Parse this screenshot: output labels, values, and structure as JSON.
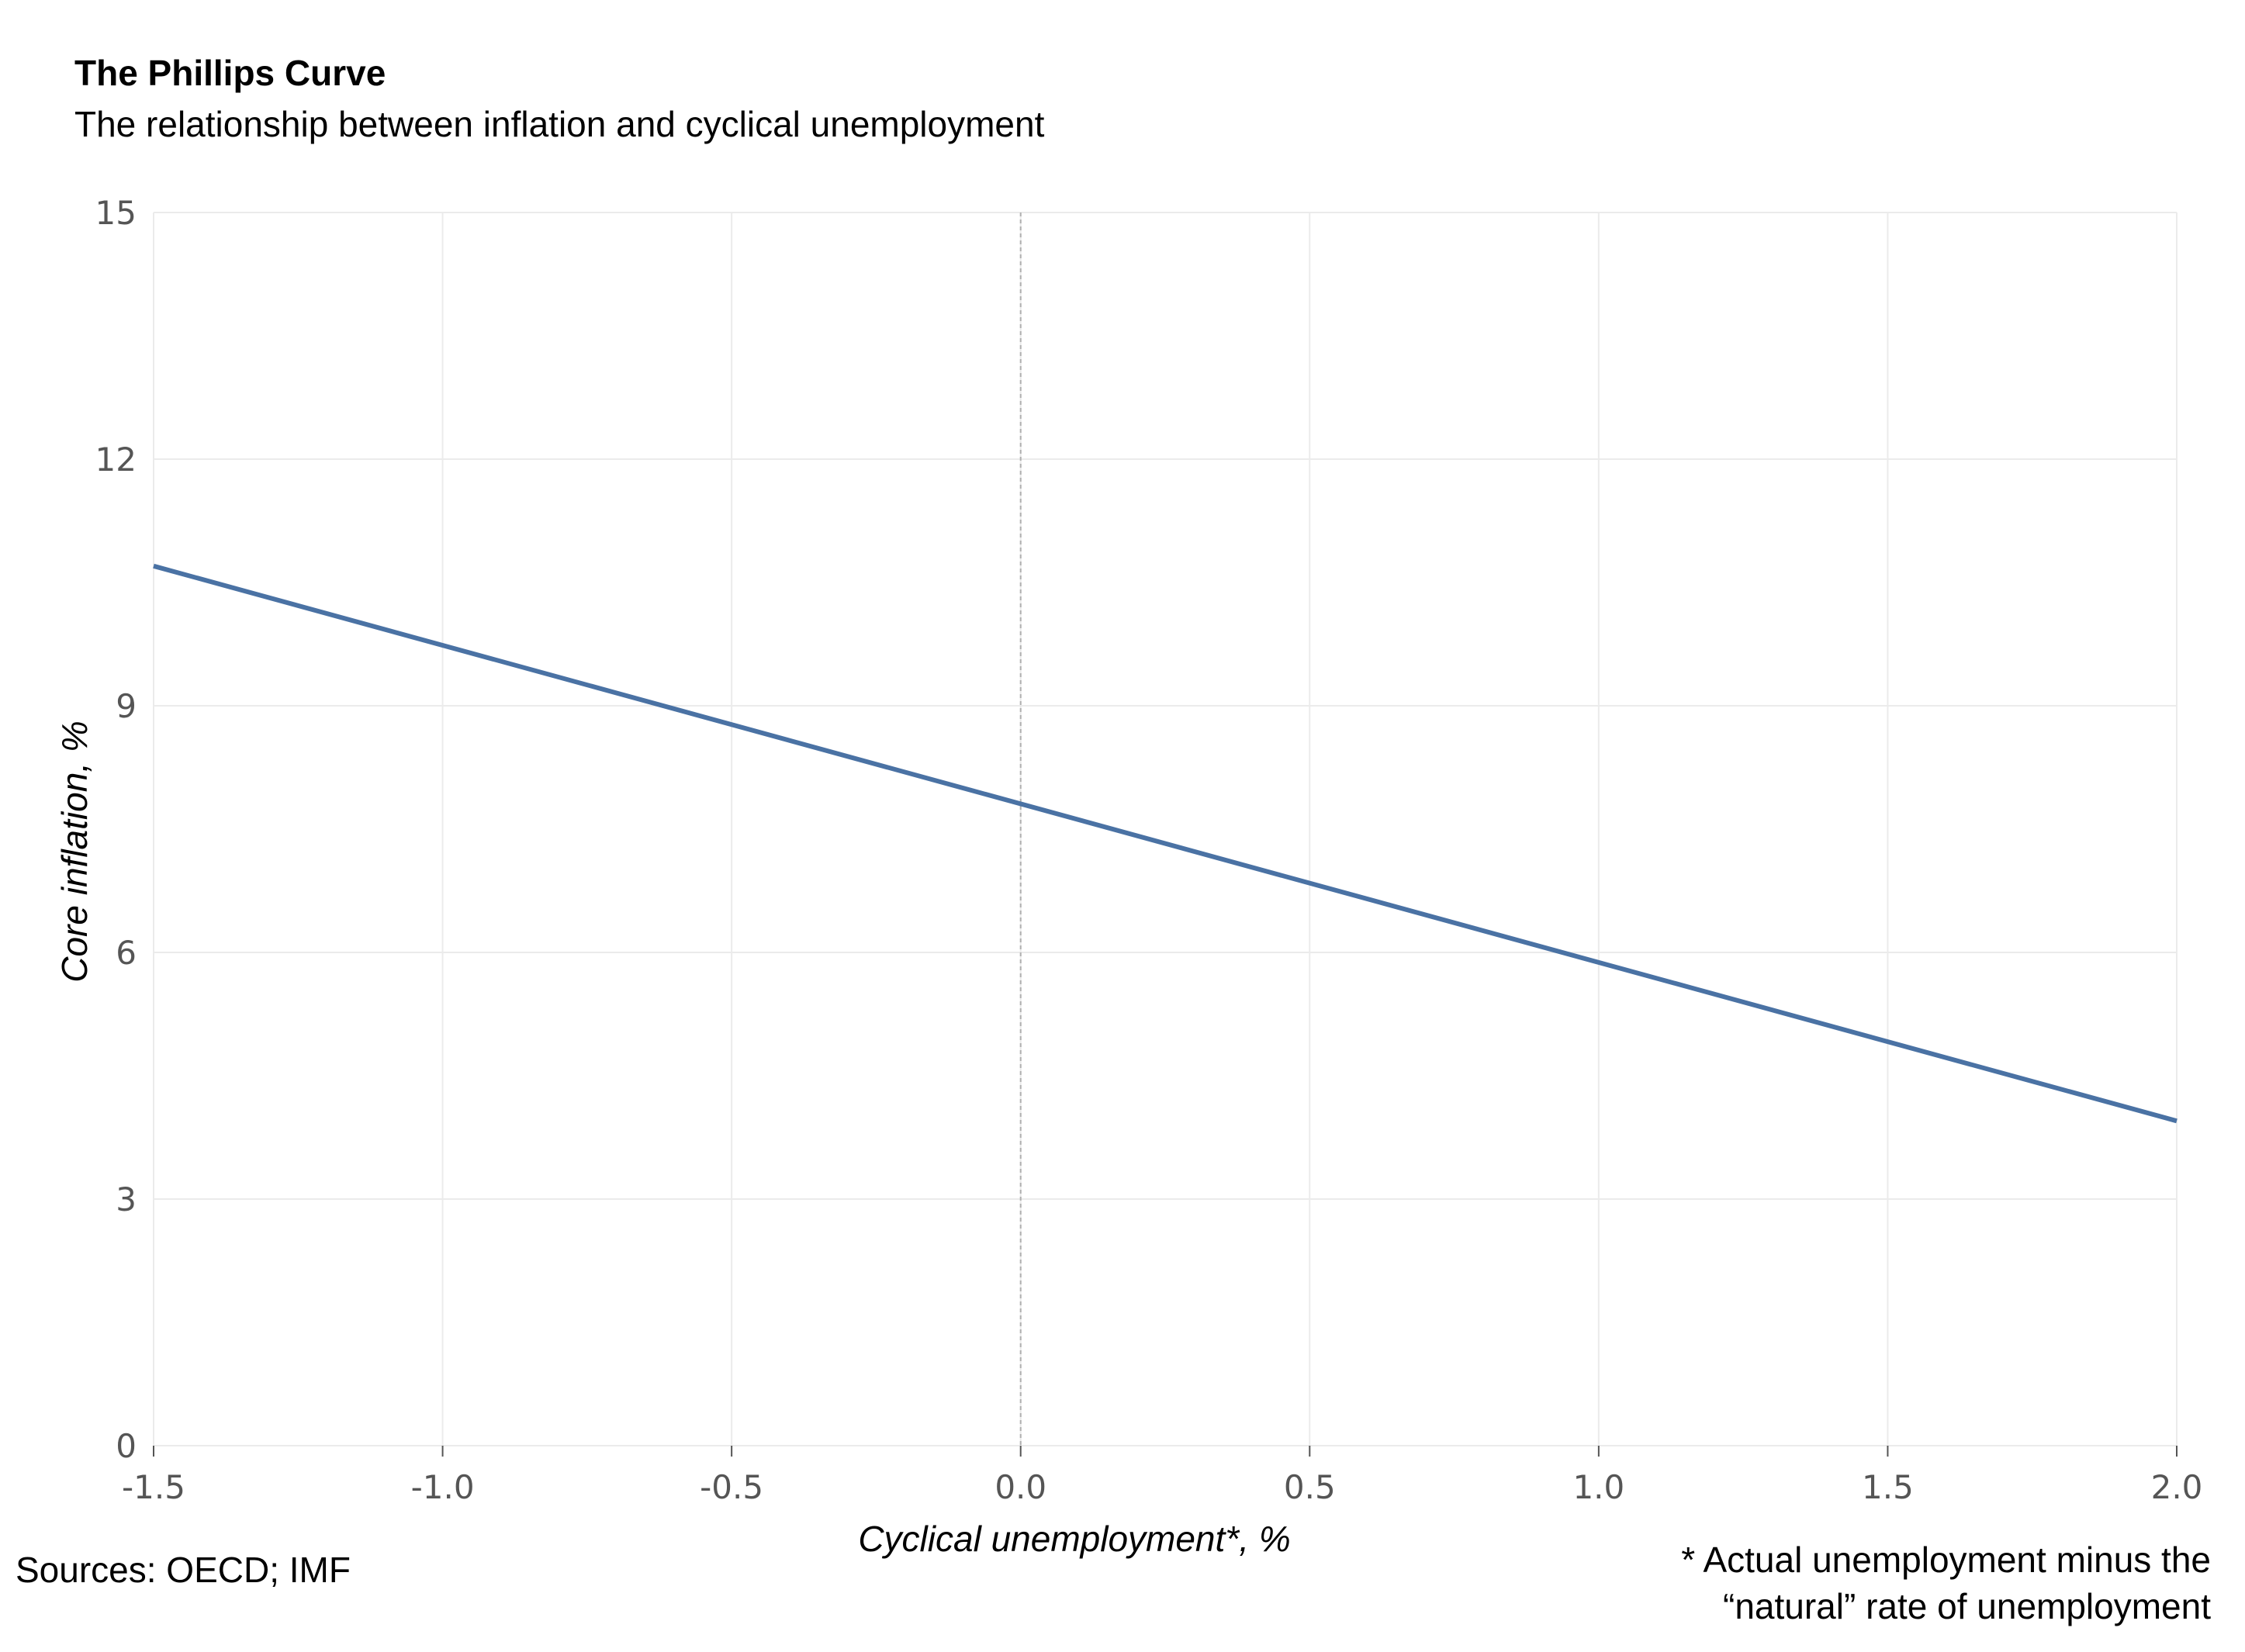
{
  "chart_data": {
    "type": "line",
    "title": "The Phillips Curve",
    "subtitle": "The relationship between inflation and cyclical unemployment",
    "xlabel": "Cyclical unemployment*, %",
    "ylabel": "Core inflation, %",
    "xlim": [
      -1.5,
      2.0
    ],
    "ylim": [
      0,
      15
    ],
    "x_ticks": [
      "-1.5",
      "-1.0",
      "-0.5",
      "0.0",
      "0.5",
      "1.0",
      "1.5",
      "2.0"
    ],
    "y_ticks": [
      "0",
      "3",
      "6",
      "9",
      "12",
      "15"
    ],
    "grid": true,
    "reference_line": {
      "x": 0,
      "style": "dashed"
    },
    "series": [
      {
        "x": [
          -1.5,
          2.0
        ],
        "y": [
          10.7,
          3.95
        ],
        "color": "#4a72a4"
      }
    ]
  },
  "footer": {
    "source": "Sources: OECD; IMF",
    "note_line1": "* Actual unemployment minus the",
    "note_line2": "“natural” rate of unemployment"
  }
}
